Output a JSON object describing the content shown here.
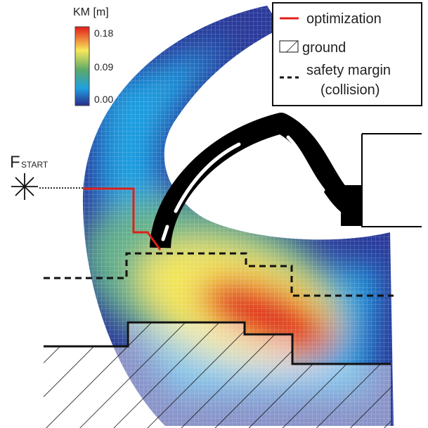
{
  "colorbar": {
    "title": "KM [m]",
    "ticks": [
      "0.18",
      "0.09",
      "0.00"
    ]
  },
  "legend": {
    "entries": [
      "optimization",
      "ground",
      "safety margin",
      "(collision)"
    ]
  },
  "force": {
    "label": "F",
    "subscript": "START"
  }
}
